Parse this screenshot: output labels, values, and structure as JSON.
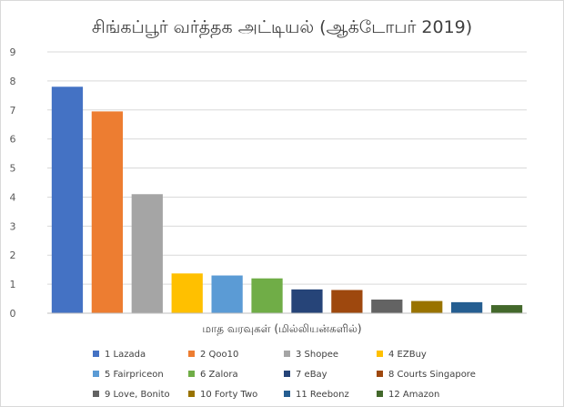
{
  "chart_data": {
    "type": "bar",
    "title": "சிங்கப்பூர் வர்த்தக அட்டியல் (ஆக்டோபர் 2019)",
    "xlabel": "மாத வரவுகள் (மில்லியன்களில்)",
    "ylabel": "",
    "ylim": [
      0,
      9
    ],
    "yticks": [
      0,
      1,
      2,
      3,
      4,
      5,
      6,
      7,
      8,
      9
    ],
    "grid": true,
    "legend_position": "bottom",
    "series": [
      {
        "name": "1 Lazada",
        "value": 7.8,
        "color": "#4472c4"
      },
      {
        "name": "2 Qoo10",
        "value": 6.95,
        "color": "#ed7d31"
      },
      {
        "name": "3 Shopee",
        "value": 4.1,
        "color": "#a5a5a5"
      },
      {
        "name": "4 EZBuy",
        "value": 1.37,
        "color": "#ffc000"
      },
      {
        "name": "5 Fairpriceon",
        "value": 1.3,
        "color": "#5b9bd5"
      },
      {
        "name": "6 Zalora",
        "value": 1.2,
        "color": "#70ad47"
      },
      {
        "name": "7 eBay",
        "value": 0.82,
        "color": "#264478"
      },
      {
        "name": "8 Courts Singapore",
        "value": 0.8,
        "color": "#9e480e"
      },
      {
        "name": "9 Love, Bonito",
        "value": 0.47,
        "color": "#636363"
      },
      {
        "name": "10 Forty Two",
        "value": 0.42,
        "color": "#997300"
      },
      {
        "name": "11 Reebonz",
        "value": 0.38,
        "color": "#255e91"
      },
      {
        "name": "12 Amazon",
        "value": 0.28,
        "color": "#43682b"
      }
    ]
  }
}
